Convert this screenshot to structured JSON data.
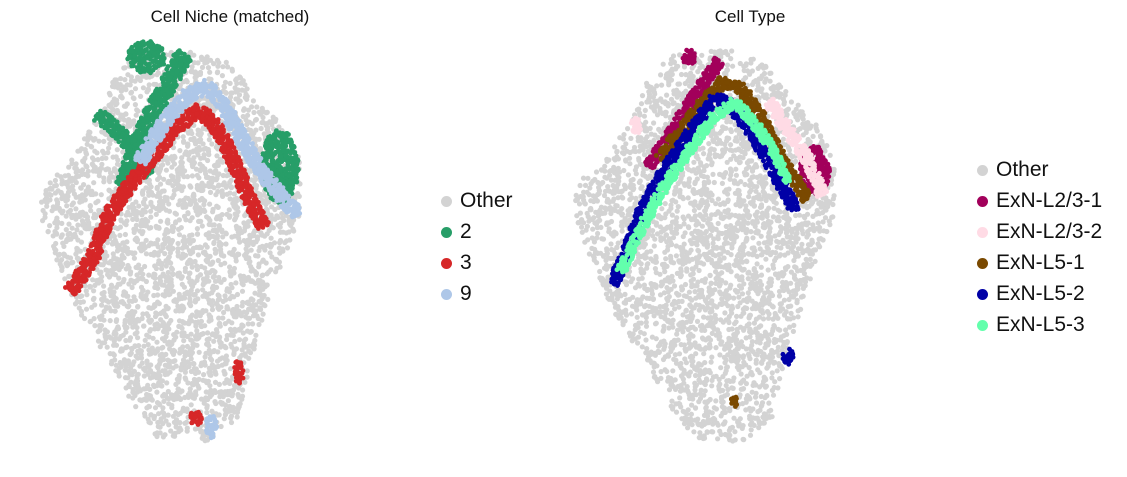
{
  "chart_data": [
    {
      "type": "scatter",
      "title": "Cell Niche (matched)",
      "xlabel": "",
      "ylabel": "",
      "grid": false,
      "axes_visible": false,
      "legend_position": "right",
      "legend": [
        {
          "label": "Other",
          "color": "#d3d3d3"
        },
        {
          "label": "2",
          "color": "#279e68"
        },
        {
          "label": "3",
          "color": "#d62728"
        },
        {
          "label": "9",
          "color": "#aec7e8"
        }
      ],
      "xlim": [
        0,
        100
      ],
      "ylim": [
        0,
        100
      ],
      "series": [
        {
          "label": "Other",
          "color": "#d3d3d3",
          "regions": [
            {
              "kind": "tissue",
              "outline": [
                [
                  4,
                  63
                ],
                [
                  7,
                  69
                ],
                [
                  11,
                  70
                ],
                [
                  15,
                  76
                ],
                [
                  19,
                  82
                ],
                [
                  23,
                  91
                ],
                [
                  28,
                  98
                ],
                [
                  44,
                  99
                ],
                [
                  55,
                  95
                ],
                [
                  62,
                  86
                ],
                [
                  67,
                  81
                ],
                [
                  73,
                  71
                ],
                [
                  72,
                  57
                ],
                [
                  65,
                  40
                ],
                [
                  60,
                  24
                ],
                [
                  56,
                  8
                ],
                [
                  48,
                  2
                ],
                [
                  35,
                  3
                ],
                [
                  28,
                  12
                ],
                [
                  24,
                  19
                ],
                [
                  13,
                  36
                ],
                [
                  4,
                  57
                ]
              ]
            }
          ]
        },
        {
          "label": "2",
          "color": "#279e68",
          "regions": [
            {
              "kind": "band",
              "spine": [
                [
                  42,
                  98
                ],
                [
                  38,
                  91
                ],
                [
                  34,
                  84
                ],
                [
                  30,
                  76
                ],
                [
                  26,
                  65
                ]
              ],
              "width": 4.5
            },
            {
              "kind": "band",
              "spine": [
                [
                  19,
                  83
                ],
                [
                  24,
                  79
                ],
                [
                  29,
                  74
                ],
                [
                  33,
                  68
                ]
              ],
              "width": 3.5
            },
            {
              "kind": "blob",
              "center": [
                67,
                70
              ],
              "rx": 5,
              "ry": 9
            },
            {
              "kind": "blob",
              "center": [
                32,
                97
              ],
              "rx": 5,
              "ry": 4
            }
          ]
        },
        {
          "label": "3",
          "color": "#d62728",
          "regions": [
            {
              "kind": "band",
              "spine": [
                [
                  12,
                  39
                ],
                [
                  18,
                  48
                ],
                [
                  22,
                  58
                ],
                [
                  28,
                  66
                ],
                [
                  34,
                  73
                ],
                [
                  40,
                  80
                ],
                [
                  46,
                  84
                ],
                [
                  51,
                  79
                ],
                [
                  55,
                  71
                ],
                [
                  59,
                  62
                ],
                [
                  63,
                  55
                ]
              ],
              "width": 3.5
            },
            {
              "kind": "blob",
              "center": [
                56,
                19
              ],
              "rx": 1.5,
              "ry": 3
            },
            {
              "kind": "blob",
              "center": [
                45,
                8
              ],
              "rx": 1.5,
              "ry": 2
            }
          ]
        },
        {
          "label": "9",
          "color": "#aec7e8",
          "regions": [
            {
              "kind": "band",
              "spine": [
                [
                  30,
                  71
                ],
                [
                  36,
                  80
                ],
                [
                  42,
                  87
                ],
                [
                  48,
                  90
                ],
                [
                  53,
                  84
                ],
                [
                  57,
                  77
                ],
                [
                  62,
                  69
                ],
                [
                  68,
                  62
                ],
                [
                  72,
                  58
                ]
              ],
              "width": 3.5
            },
            {
              "kind": "blob",
              "center": [
                49,
                6
              ],
              "rx": 1.5,
              "ry": 3
            }
          ]
        }
      ]
    },
    {
      "type": "scatter",
      "title": "Cell Type",
      "xlabel": "",
      "ylabel": "",
      "grid": false,
      "axes_visible": false,
      "legend_position": "right",
      "legend": [
        {
          "label": "Other",
          "color": "#d3d3d3"
        },
        {
          "label": "ExN-L2/3-1",
          "color": "#a2005b"
        },
        {
          "label": "ExN-L2/3-2",
          "color": "#ffdbe5"
        },
        {
          "label": "ExN-L5-1",
          "color": "#7a4900"
        },
        {
          "label": "ExN-L5-2",
          "color": "#0000a6"
        },
        {
          "label": "ExN-L5-3",
          "color": "#63ffac"
        }
      ],
      "xlim": [
        0,
        100
      ],
      "ylim": [
        0,
        100
      ],
      "series": [
        {
          "label": "Other",
          "color": "#d3d3d3",
          "regions": [
            {
              "kind": "tissue",
              "outline": [
                [
                  4,
                  63
                ],
                [
                  7,
                  69
                ],
                [
                  11,
                  70
                ],
                [
                  15,
                  76
                ],
                [
                  19,
                  82
                ],
                [
                  23,
                  91
                ],
                [
                  28,
                  98
                ],
                [
                  44,
                  99
                ],
                [
                  55,
                  95
                ],
                [
                  62,
                  86
                ],
                [
                  67,
                  81
                ],
                [
                  73,
                  71
                ],
                [
                  72,
                  57
                ],
                [
                  65,
                  40
                ],
                [
                  60,
                  24
                ],
                [
                  56,
                  8
                ],
                [
                  48,
                  2
                ],
                [
                  35,
                  3
                ],
                [
                  28,
                  12
                ],
                [
                  24,
                  19
                ],
                [
                  13,
                  36
                ],
                [
                  4,
                  57
                ]
              ]
            }
          ]
        },
        {
          "label": "ExN-L2/3-1",
          "color": "#a2005b",
          "regions": [
            {
              "kind": "band",
              "spine": [
                [
                  23,
                  70
                ],
                [
                  28,
                  76
                ],
                [
                  33,
                  84
                ],
                [
                  38,
                  91
                ],
                [
                  42,
                  96
                ]
              ],
              "width": 3
            },
            {
              "kind": "blob",
              "center": [
                67,
                69
              ],
              "rx": 4,
              "ry": 6
            },
            {
              "kind": "blob",
              "center": [
                34,
                97
              ],
              "rx": 2,
              "ry": 2
            }
          ]
        },
        {
          "label": "ExN-L2/3-2",
          "color": "#ffdbe5",
          "regions": [
            {
              "kind": "band",
              "spine": [
                [
                  55,
                  86
                ],
                [
                  60,
                  79
                ],
                [
                  65,
                  72
                ],
                [
                  69,
                  63
                ]
              ],
              "width": 3
            },
            {
              "kind": "blob",
              "center": [
                20,
                80
              ],
              "rx": 1.5,
              "ry": 2
            }
          ]
        },
        {
          "label": "ExN-L5-1",
          "color": "#7a4900",
          "regions": [
            {
              "kind": "band",
              "spine": [
                [
                  26,
                  72
                ],
                [
                  32,
                  79
                ],
                [
                  38,
                  86
                ],
                [
                  43,
                  91
                ],
                [
                  48,
                  89
                ],
                [
                  53,
                  82
                ],
                [
                  57,
                  74
                ],
                [
                  61,
                  68
                ],
                [
                  65,
                  62
                ]
              ],
              "width": 3
            },
            {
              "kind": "blob",
              "center": [
                46,
                12
              ],
              "rx": 1,
              "ry": 1.5
            }
          ]
        },
        {
          "label": "ExN-L5-2",
          "color": "#0000a6",
          "regions": [
            {
              "kind": "band",
              "spine": [
                [
                  14,
                  41
                ],
                [
                  18,
                  50
                ],
                [
                  22,
                  60
                ],
                [
                  27,
                  68
                ],
                [
                  32,
                  75
                ],
                [
                  37,
                  82
                ],
                [
                  41,
                  87
                ],
                [
                  45,
                  85
                ],
                [
                  50,
                  79
                ],
                [
                  54,
                  73
                ],
                [
                  58,
                  66
                ],
                [
                  62,
                  59
                ]
              ],
              "width": 3
            },
            {
              "kind": "blob",
              "center": [
                60,
                23
              ],
              "rx": 1.5,
              "ry": 2
            }
          ]
        },
        {
          "label": "ExN-L5-3",
          "color": "#63ffac",
          "regions": [
            {
              "kind": "band",
              "spine": [
                [
                  16,
                  44
                ],
                [
                  22,
                  56
                ],
                [
                  28,
                  66
                ],
                [
                  34,
                  74
                ],
                [
                  40,
                  82
                ],
                [
                  46,
                  86
                ],
                [
                  51,
                  81
                ],
                [
                  56,
                  74
                ],
                [
                  60,
                  66
                ]
              ],
              "width": 2.5
            }
          ]
        }
      ]
    }
  ]
}
